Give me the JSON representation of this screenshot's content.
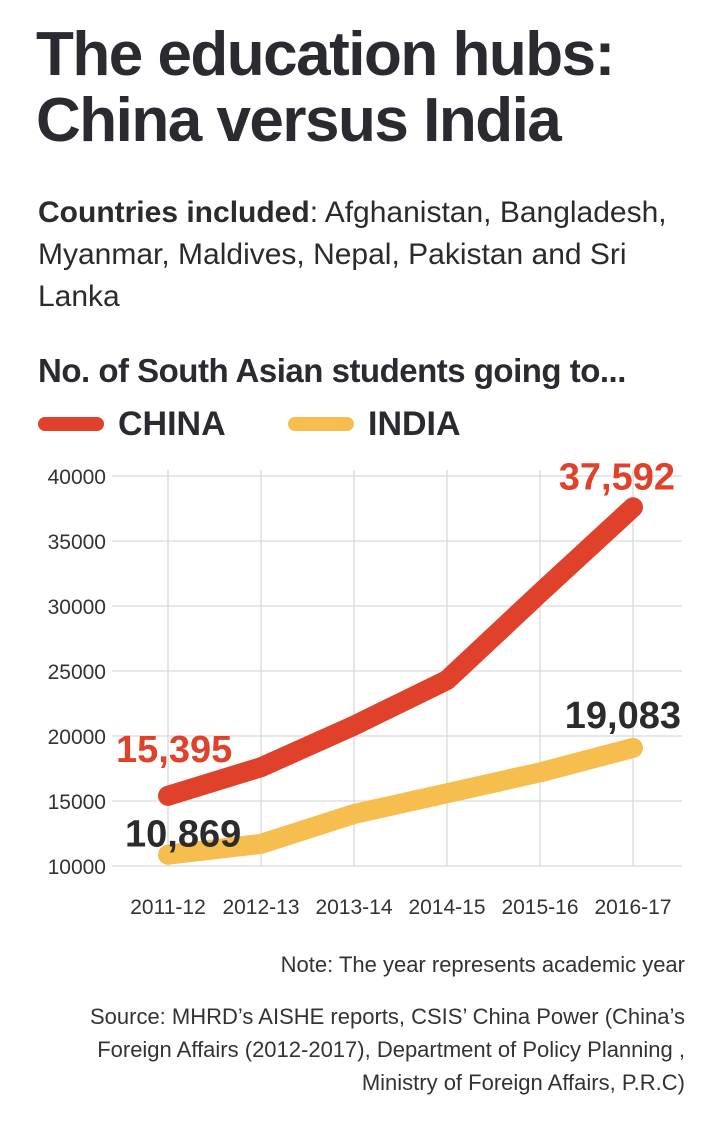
{
  "header": {
    "title_line1": "The education hubs:",
    "title_line2": "China versus India",
    "countries_label": "Countries included",
    "countries_text": ": Afghanistan, Bangladesh, Myanmar, Maldives, Nepal, Pakistan and Sri Lanka",
    "subhead": "No. of South Asian students going to..."
  },
  "legend": [
    {
      "label": "CHINA",
      "color": "#e0412b"
    },
    {
      "label": "INDIA",
      "color": "#f5be4e"
    }
  ],
  "chart_data": {
    "type": "line",
    "categories": [
      "2011-12",
      "2012-13",
      "2013-14",
      "2014-15",
      "2015-16",
      "2016-17"
    ],
    "series": [
      {
        "name": "CHINA",
        "color": "#e0412b",
        "values": [
          15395,
          17600,
          20800,
          24300,
          31000,
          37592
        ]
      },
      {
        "name": "INDIA",
        "color": "#f5be4e",
        "values": [
          10869,
          11700,
          14000,
          15600,
          17200,
          19083
        ]
      }
    ],
    "yticks": [
      10000,
      15000,
      20000,
      25000,
      30000,
      35000,
      40000
    ],
    "ylim": [
      10000,
      40000
    ],
    "grid": true,
    "annotations": [
      {
        "series": "CHINA",
        "point": "first",
        "text": "15,395",
        "color": "#e0412b"
      },
      {
        "series": "CHINA",
        "point": "last",
        "text": "37,592",
        "color": "#e0412b"
      },
      {
        "series": "INDIA",
        "point": "first",
        "text": "10,869",
        "color": "#2b2b2e"
      },
      {
        "series": "INDIA",
        "point": "last",
        "text": "19,083",
        "color": "#2b2b2e"
      }
    ]
  },
  "footer": {
    "note": "Note: The year represents academic year",
    "source_lines": [
      "Source: MHRD’s AISHE reports, CSIS’ China Power (China’s",
      "Foreign Affairs (2012-2017), Department of Policy Planning ,",
      "Ministry of Foreign Affairs, P.R.C)"
    ]
  }
}
